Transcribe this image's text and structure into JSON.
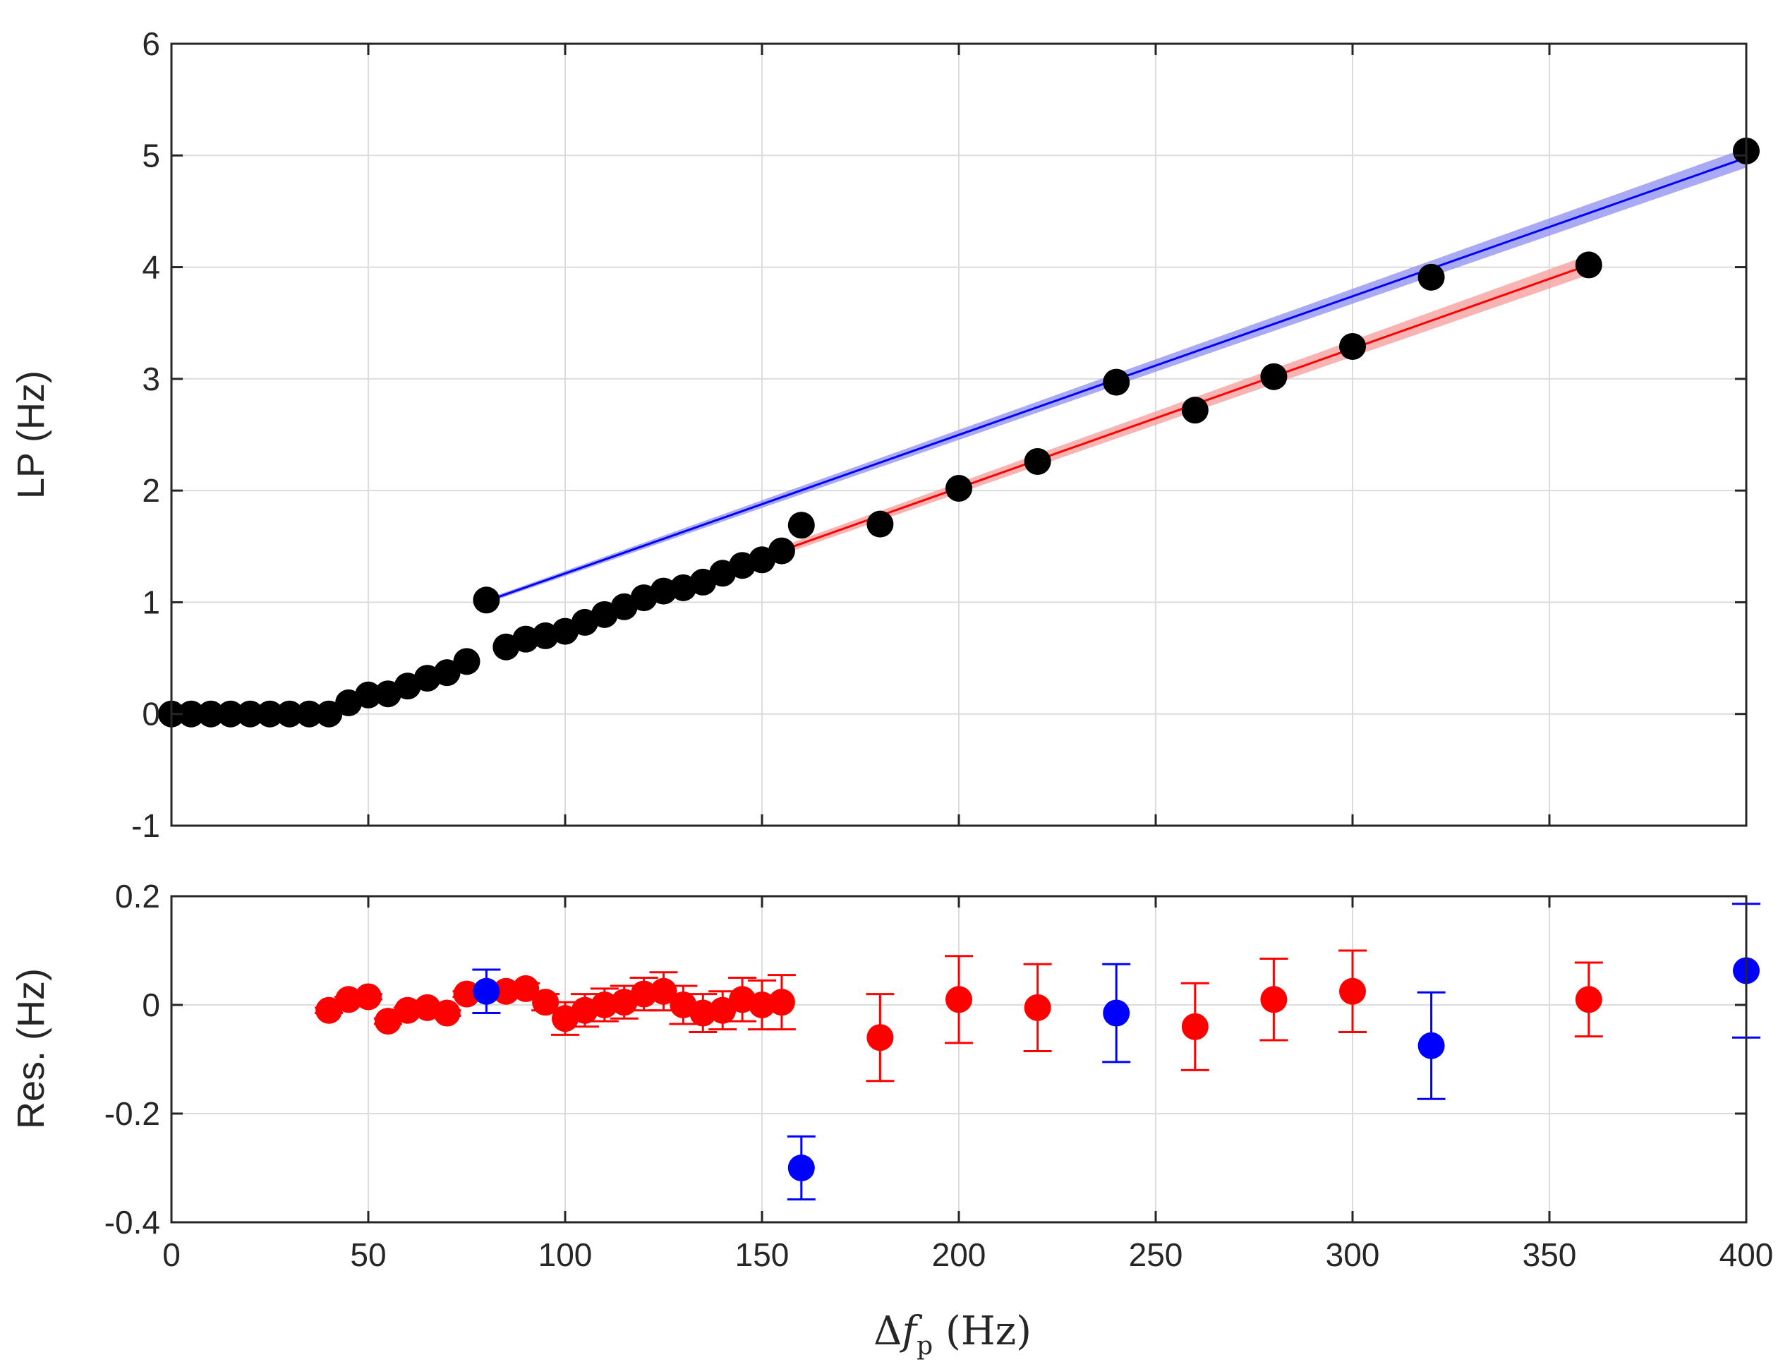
{
  "chart_data": [
    {
      "type": "scatter",
      "panel": "top",
      "ylabel": "LP (Hz)",
      "xlim": [
        0,
        400
      ],
      "ylim": [
        -1,
        6
      ],
      "xticks": [
        "0",
        "50",
        "100",
        "150",
        "200",
        "250",
        "300",
        "350",
        "400"
      ],
      "yticks": [
        "-1",
        "0",
        "1",
        "2",
        "3",
        "4",
        "5",
        "6"
      ],
      "grid": true,
      "points": {
        "name": "LP data",
        "color": "#000000",
        "x": [
          0,
          5,
          10,
          15,
          20,
          25,
          30,
          35,
          40,
          45,
          50,
          55,
          60,
          65,
          70,
          75,
          80,
          85,
          90,
          95,
          100,
          105,
          110,
          115,
          120,
          125,
          130,
          135,
          140,
          145,
          150,
          155,
          160,
          180,
          200,
          220,
          240,
          260,
          280,
          300,
          320,
          360,
          400
        ],
        "y": [
          0,
          0,
          0,
          0,
          0,
          0,
          0,
          0,
          0,
          0.1,
          0.17,
          0.18,
          0.25,
          0.32,
          0.37,
          0.47,
          1.02,
          0.6,
          0.67,
          0.7,
          0.74,
          0.82,
          0.89,
          0.96,
          1.04,
          1.1,
          1.13,
          1.18,
          1.26,
          1.33,
          1.38,
          1.46,
          1.69,
          1.7,
          2.02,
          2.26,
          2.97,
          2.72,
          3.02,
          3.29,
          3.91,
          4.02,
          5.04
        ]
      },
      "fits": [
        {
          "name": "blue fit",
          "color": "#0000ff",
          "band": "#8c8cf0",
          "x": [
            80,
            400
          ],
          "y": [
            1.01,
            4.98
          ]
        },
        {
          "name": "red fit",
          "color": "#ff0000",
          "band": "#f59a9a",
          "x": [
            85,
            360
          ],
          "y": [
            0.59,
            4.02
          ]
        }
      ]
    },
    {
      "type": "scatter",
      "panel": "bottom",
      "ylabel": "Res. (Hz)",
      "xlabel": "Δf_p (Hz)",
      "xlim": [
        0,
        400
      ],
      "ylim": [
        -0.4,
        0.2
      ],
      "xticks": [
        "0",
        "50",
        "100",
        "150",
        "200",
        "250",
        "300",
        "350",
        "400"
      ],
      "yticks": [
        "-0.4",
        "-0.2",
        "0",
        "0.2"
      ],
      "grid": true,
      "series": [
        {
          "name": "red residuals",
          "color": "#ff0000",
          "x": [
            40,
            45,
            50,
            55,
            60,
            65,
            70,
            75,
            85,
            90,
            95,
            100,
            105,
            110,
            115,
            120,
            125,
            130,
            135,
            140,
            145,
            150,
            155,
            180,
            200,
            220,
            260,
            280,
            300,
            360
          ],
          "y": [
            -0.01,
            0.01,
            0.015,
            -0.03,
            -0.01,
            -0.005,
            -0.015,
            0.02,
            0.025,
            0.03,
            0.005,
            -0.025,
            -0.01,
            0,
            0.005,
            0.02,
            0.025,
            0,
            -0.015,
            -0.01,
            0.01,
            0,
            0.005,
            -0.06,
            0.01,
            -0.005,
            -0.04,
            0.01,
            0.025,
            0.01
          ],
          "err": [
            0.005,
            0.005,
            0.005,
            0.005,
            0.005,
            0.005,
            0.005,
            0.005,
            0.01,
            0.01,
            0.015,
            0.03,
            0.03,
            0.03,
            0.03,
            0.03,
            0.035,
            0.035,
            0.035,
            0.035,
            0.04,
            0.045,
            0.05,
            0.08,
            0.08,
            0.08,
            0.08,
            0.075,
            0.075,
            0.068
          ]
        },
        {
          "name": "blue residuals",
          "color": "#0000ff",
          "x": [
            80,
            160,
            240,
            320,
            400
          ],
          "y": [
            0.025,
            -0.3,
            -0.015,
            -0.075,
            0.063
          ],
          "err": [
            0.04,
            0.058,
            0.09,
            0.098,
            0.123
          ]
        }
      ]
    }
  ]
}
